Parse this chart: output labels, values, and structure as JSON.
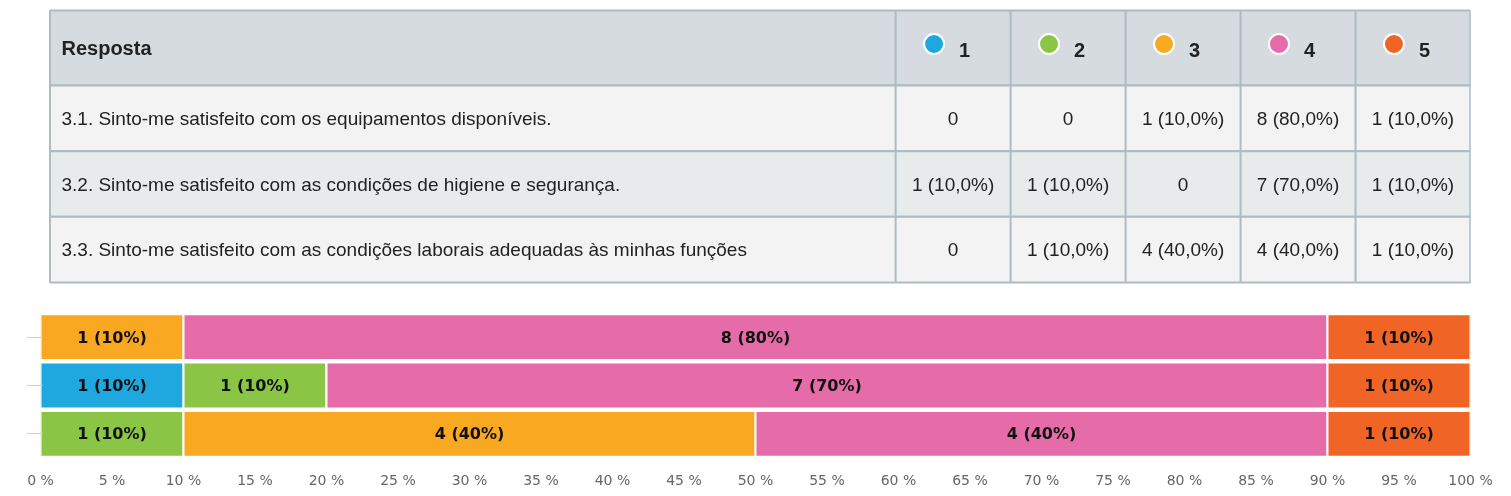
{
  "chart_data": {
    "type": "bar",
    "orientation": "horizontal",
    "stacked": true,
    "legend_title": "Resposta",
    "categories": [
      null,
      null,
      null
    ],
    "series": [
      {
        "name": "1",
        "color": "#1fa8e0",
        "values": [
          0,
          10,
          0
        ],
        "value_labels": [
          null,
          "1 (10%)",
          null
        ]
      },
      {
        "name": "2",
        "color": "#8bc546",
        "values": [
          0,
          10,
          10
        ],
        "value_labels": [
          null,
          "1 (10%)",
          "1 (10%)"
        ]
      },
      {
        "name": "3",
        "color": "#f9a822",
        "values": [
          10,
          0,
          40
        ],
        "value_labels": [
          "1 (10%)",
          null,
          "4 (40%)"
        ]
      },
      {
        "name": "4",
        "color": "#e56ca8",
        "values": [
          80,
          70,
          40
        ],
        "value_labels": [
          "8 (80%)",
          "7 (70%)",
          "4 (40%)"
        ]
      },
      {
        "name": "5",
        "color": "#f06526",
        "values": [
          10,
          10,
          10
        ],
        "value_labels": [
          "1 (10%)",
          "1 (10%)",
          "1 (10%)"
        ]
      }
    ],
    "annotations": [
      "3.1. Sinto-me satisfeito com os equipamentos disponíveis.",
      "0",
      "0",
      "1 (10,0%)",
      "8 (80,0%)",
      "1 (10,0%)",
      "3.2. Sinto-me satisfeito com as condições de higiene e segurança.",
      "1 (10,0%)",
      "1 (10,0%)",
      "0",
      "7 (70,0%)",
      "1 (10,0%)",
      "3.3. Sinto-me satisfeito com as condições laborais adequadas às minhas funções",
      "0",
      "1 (10,0%)",
      "4 (40,0%)",
      "4 (40,0%)",
      "1 (10,0%)"
    ],
    "xlim": [
      0,
      100
    ],
    "xticks": [
      {
        "value": 0,
        "label": "0 %"
      },
      {
        "value": 5,
        "label": "5 %"
      },
      {
        "value": 10,
        "label": "10 %"
      },
      {
        "value": 15,
        "label": "15 %"
      },
      {
        "value": 20,
        "label": "20 %"
      },
      {
        "value": 25,
        "label": "25 %"
      },
      {
        "value": 30,
        "label": "30 %"
      },
      {
        "value": 35,
        "label": "35 %"
      },
      {
        "value": 40,
        "label": "40 %"
      },
      {
        "value": 45,
        "label": "45 %"
      },
      {
        "value": 50,
        "label": "50 %"
      },
      {
        "value": 55,
        "label": "55 %"
      },
      {
        "value": 60,
        "label": "60 %"
      },
      {
        "value": 65,
        "label": "65 %"
      },
      {
        "value": 70,
        "label": "70 %"
      },
      {
        "value": 75,
        "label": "75 %"
      },
      {
        "value": 80,
        "label": "80 %"
      },
      {
        "value": 85,
        "label": "85 %"
      },
      {
        "value": 90,
        "label": "90 %"
      },
      {
        "value": 95,
        "label": "95 %"
      },
      {
        "value": 100,
        "label": "100 %"
      }
    ],
    "tick_labels": "x",
    "grid": false,
    "legend": "top right"
  }
}
